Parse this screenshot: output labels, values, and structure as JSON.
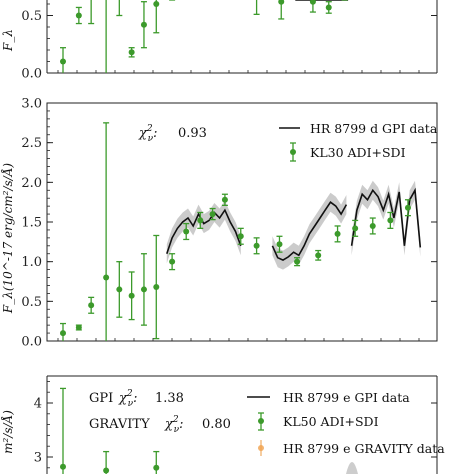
{
  "chart_data": [
    {
      "type": "scatter",
      "panel": "top (partially visible)",
      "ylabel": "F_λ",
      "ylim": [
        0,
        1.0
      ],
      "yticks": [
        "0.0",
        "0.5"
      ],
      "grid": false,
      "series": [
        {
          "name": "",
          "kind": "points_with_errorbars",
          "color": "#3c9a2b",
          "points": [
            {
              "x": 0.0,
              "y": 0.1,
              "err": 0.12
            },
            {
              "x": 0.9,
              "y": 0.5,
              "err": 0.07
            },
            {
              "x": 1.6,
              "y": 0.68,
              "err": 0.25
            },
            {
              "x": 2.45,
              "y": 0.82,
              "err": 1.0
            },
            {
              "x": 3.2,
              "y": 0.86,
              "err": 0.36
            },
            {
              "x": 3.9,
              "y": 0.18,
              "err": 0.04
            },
            {
              "x": 4.6,
              "y": 0.42,
              "err": 0.2
            },
            {
              "x": 5.3,
              "y": 0.6,
              "err": 0.25
            },
            {
              "x": 6.2,
              "y": 0.82,
              "err": 0.12
            },
            {
              "x": 11.0,
              "y": 0.66,
              "err": 0.15
            },
            {
              "x": 12.4,
              "y": 0.62,
              "err": 0.15
            },
            {
              "x": 14.2,
              "y": 0.62,
              "err": 0.09
            },
            {
              "x": 15.1,
              "y": 0.57,
              "err": 0.05
            },
            {
              "x": 16.0,
              "y": 0.75,
              "err": 0.09
            }
          ]
        },
        {
          "name": "",
          "kind": "line_with_band",
          "color": "#111111",
          "segments": [
            [
              [
                13.2,
                1.05
              ],
              [
                14.0,
                0.85
              ],
              [
                14.8,
                0.78
              ],
              [
                15.6,
                0.85
              ],
              [
                16.2,
                1.0
              ]
            ]
          ]
        }
      ]
    },
    {
      "type": "scatter",
      "panel": "middle",
      "ylabel": "F_λ(10^-17 erg/cm²/s/Å)",
      "ylim": [
        0,
        3.0
      ],
      "yticks": [
        "0.0",
        "0.5",
        "1.0",
        "1.5",
        "2.0",
        "2.5",
        "3.0"
      ],
      "grid": false,
      "legend_position": "top-right",
      "annotation": "0.93",
      "series": [
        {
          "name": "HR 8799 d GPI data",
          "kind": "line_with_band",
          "color": "#111111",
          "segments": [
            [
              [
                5.9,
                1.1
              ],
              [
                6.2,
                1.3
              ],
              [
                6.5,
                1.42
              ],
              [
                6.8,
                1.5
              ],
              [
                7.1,
                1.55
              ],
              [
                7.4,
                1.45
              ],
              [
                7.7,
                1.6
              ],
              [
                8.0,
                1.48
              ],
              [
                8.3,
                1.52
              ],
              [
                8.6,
                1.62
              ],
              [
                8.9,
                1.55
              ],
              [
                9.2,
                1.65
              ],
              [
                9.5,
                1.5
              ],
              [
                9.8,
                1.38
              ],
              [
                10.1,
                1.2
              ]
            ],
            [
              [
                11.9,
                1.2
              ],
              [
                12.2,
                1.05
              ],
              [
                12.5,
                1.02
              ],
              [
                12.8,
                1.06
              ],
              [
                13.1,
                1.12
              ],
              [
                13.4,
                1.08
              ],
              [
                13.7,
                1.2
              ],
              [
                14.0,
                1.35
              ],
              [
                14.3,
                1.45
              ],
              [
                14.6,
                1.55
              ],
              [
                14.9,
                1.65
              ],
              [
                15.2,
                1.75
              ],
              [
                15.5,
                1.7
              ],
              [
                15.8,
                1.6
              ],
              [
                16.1,
                1.72
              ]
            ],
            [
              [
                16.4,
                1.2
              ],
              [
                16.7,
                1.65
              ],
              [
                17.0,
                1.85
              ],
              [
                17.3,
                1.78
              ],
              [
                17.6,
                1.9
              ],
              [
                17.9,
                1.82
              ],
              [
                18.2,
                1.65
              ],
              [
                18.5,
                1.85
              ],
              [
                18.8,
                1.55
              ],
              [
                19.1,
                1.88
              ],
              [
                19.4,
                1.2
              ],
              [
                19.7,
                1.78
              ],
              [
                20.0,
                1.9
              ],
              [
                20.3,
                1.18
              ]
            ]
          ]
        },
        {
          "name": "KL30 ADI+SDI",
          "kind": "points_with_errorbars",
          "color": "#3c9a2b",
          "points": [
            {
              "x": 0.0,
              "y": 0.1,
              "err": 0.12
            },
            {
              "x": 0.9,
              "y": 0.17,
              "err": 0.03
            },
            {
              "x": 1.6,
              "y": 0.45,
              "err": 0.1
            },
            {
              "x": 2.45,
              "y": 0.8,
              "err": 1.95
            },
            {
              "x": 3.2,
              "y": 0.65,
              "err": 0.35
            },
            {
              "x": 3.9,
              "y": 0.57,
              "err": 0.3
            },
            {
              "x": 4.6,
              "y": 0.65,
              "err": 0.45
            },
            {
              "x": 5.3,
              "y": 0.68,
              "err": 0.65
            },
            {
              "x": 6.2,
              "y": 1.0,
              "err": 0.1
            },
            {
              "x": 7.0,
              "y": 1.38,
              "err": 0.1
            },
            {
              "x": 7.8,
              "y": 1.52,
              "err": 0.1
            },
            {
              "x": 8.5,
              "y": 1.6,
              "err": 0.07
            },
            {
              "x": 9.2,
              "y": 1.78,
              "err": 0.07
            },
            {
              "x": 10.1,
              "y": 1.32,
              "err": 0.1
            },
            {
              "x": 11.0,
              "y": 1.2,
              "err": 0.1
            },
            {
              "x": 12.3,
              "y": 1.22,
              "err": 0.1
            },
            {
              "x": 13.3,
              "y": 1.0,
              "err": 0.05
            },
            {
              "x": 14.5,
              "y": 1.08,
              "err": 0.06
            },
            {
              "x": 15.6,
              "y": 1.35,
              "err": 0.1
            },
            {
              "x": 16.6,
              "y": 1.42,
              "err": 0.1
            },
            {
              "x": 17.6,
              "y": 1.45,
              "err": 0.1
            },
            {
              "x": 18.6,
              "y": 1.52,
              "err": 0.1
            },
            {
              "x": 19.6,
              "y": 1.68,
              "err": 0.1
            }
          ]
        }
      ]
    },
    {
      "type": "scatter",
      "panel": "bottom (partially visible)",
      "ylabel": "m²/s/Å)",
      "ylim": [
        2.7,
        4.5
      ],
      "yticks": [
        "3",
        "4"
      ],
      "grid": false,
      "legend_position": "top-right",
      "annotations": [
        "1.38",
        "0.80"
      ],
      "series": [
        {
          "name": "HR 8799 e GPI data",
          "kind": "line_with_band",
          "color": "#111111",
          "segments": []
        },
        {
          "name": "KL50 ADI+SDI",
          "kind": "points_with_errorbars",
          "color": "#3c9a2b",
          "points": [
            {
              "x": 0.0,
              "y": 2.82,
              "err": 1.45
            },
            {
              "x": 2.45,
              "y": 2.75,
              "err": 0.35
            },
            {
              "x": 5.3,
              "y": 2.8,
              "err": 0.3
            }
          ]
        },
        {
          "name": "HR 8799 e GRAVITY data",
          "kind": "points_with_errorbars",
          "color": "#f0a04b",
          "points": []
        }
      ]
    }
  ],
  "annotations": {
    "mid_chi": "0.93",
    "bot_gpi_prefix": "GPI",
    "bot_gpi_val": "1.38",
    "bot_grav_prefix": "GRAVITY",
    "bot_grav_val": "0.80"
  },
  "legends": {
    "mid_line": "HR 8799 d GPI data",
    "mid_points": "KL30 ADI+SDI",
    "bot_line": "HR 8799 e GPI data",
    "bot_points": "KL50 ADI+SDI",
    "bot_gravity": "HR 8799 e GRAVITY data"
  },
  "ylabels": {
    "top": "F_λ",
    "mid": "F_λ(10^-17 erg/cm²/s/Å)",
    "bot": "m²/s/Å)"
  }
}
